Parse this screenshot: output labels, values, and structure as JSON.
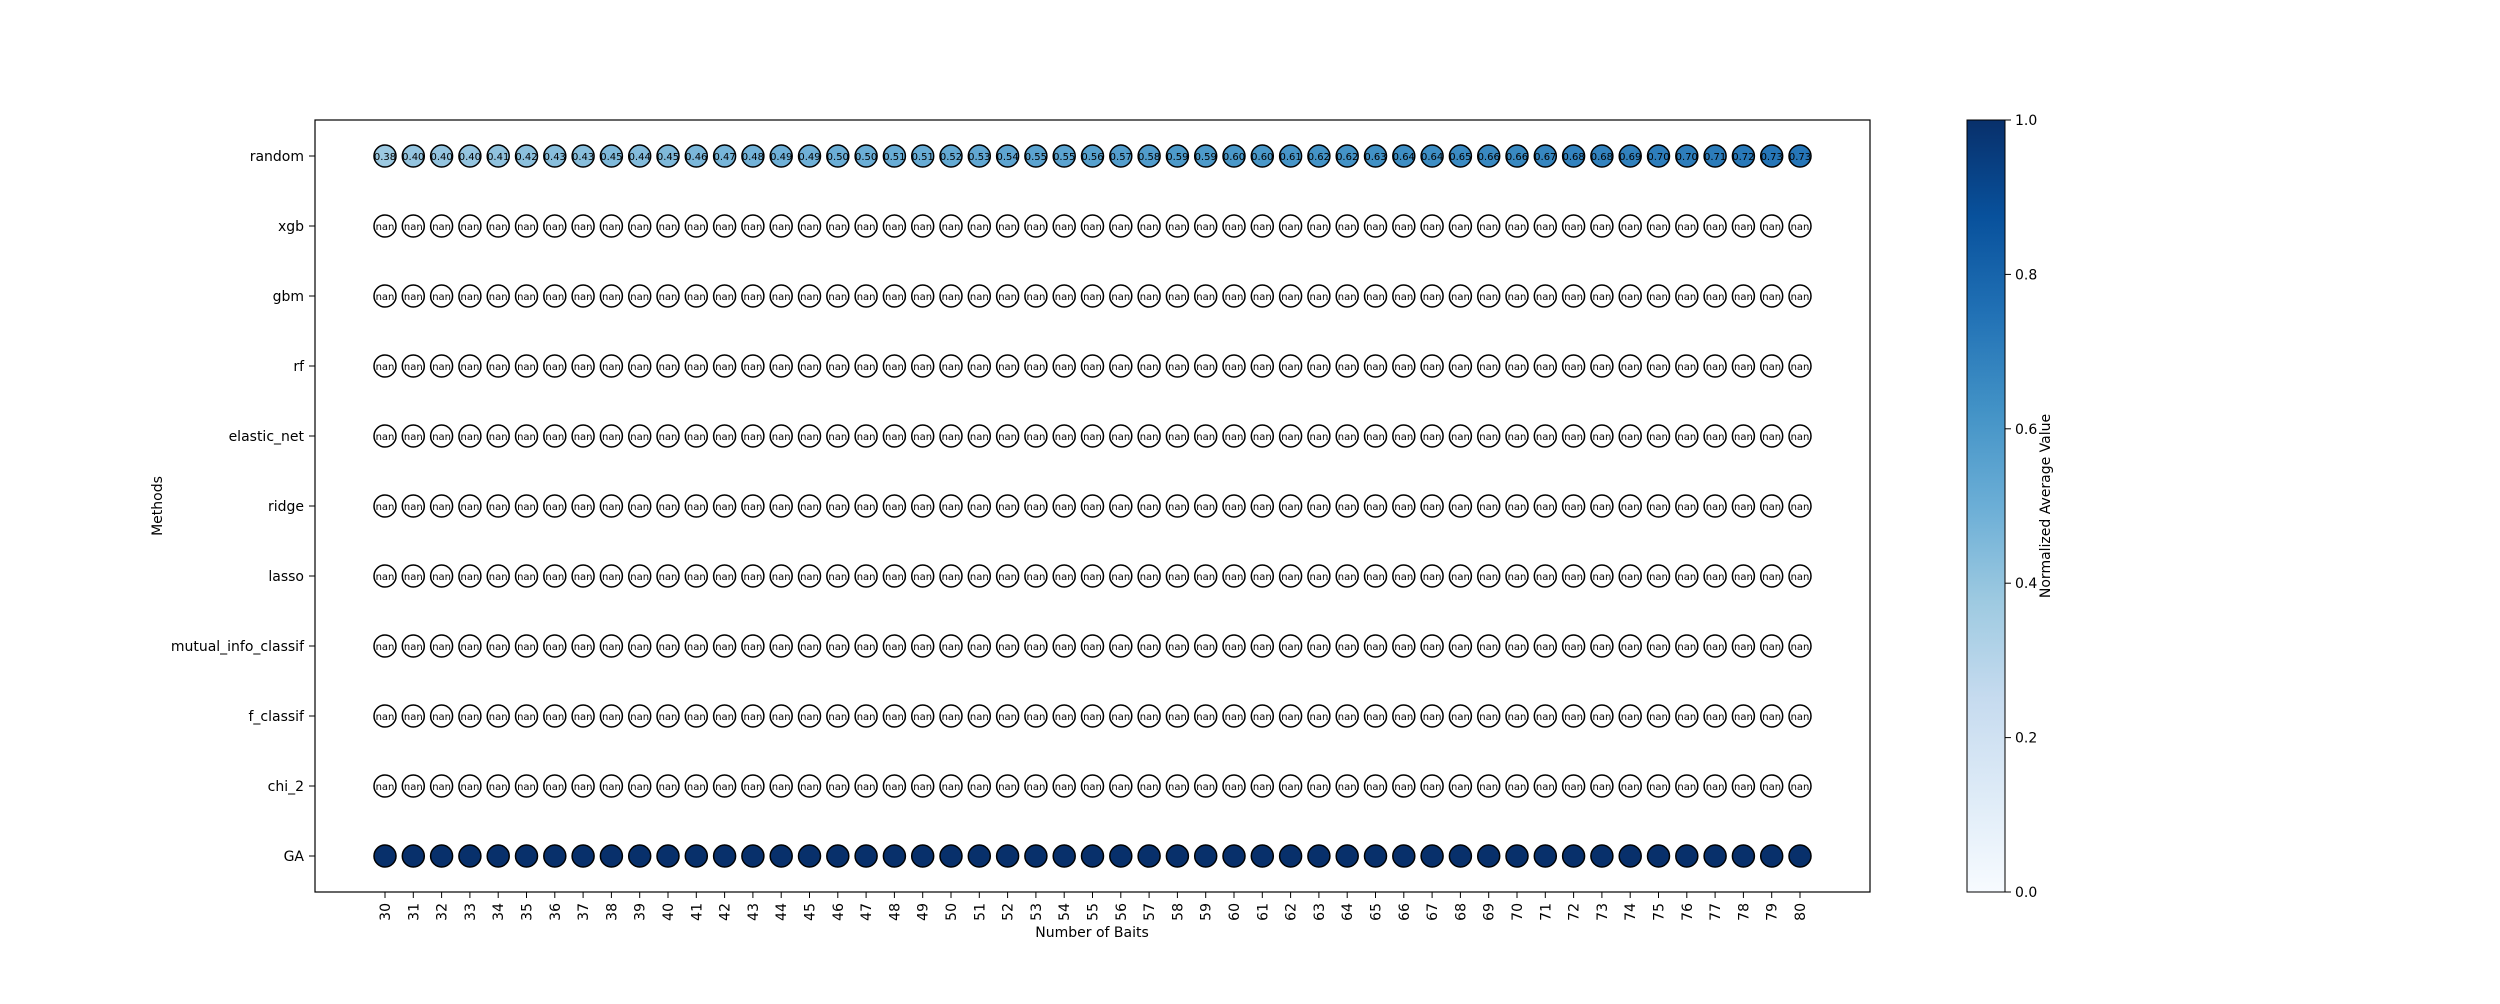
{
  "chart_data": {
    "type": "scatter",
    "xlabel": "Number of Baits",
    "ylabel": "Methods",
    "x": [
      30,
      31,
      32,
      33,
      34,
      35,
      36,
      37,
      38,
      39,
      40,
      41,
      42,
      43,
      44,
      45,
      46,
      47,
      48,
      49,
      50,
      51,
      52,
      53,
      54,
      55,
      56,
      57,
      58,
      59,
      60,
      61,
      62,
      63,
      64,
      65,
      66,
      67,
      68,
      69,
      70,
      71,
      72,
      73,
      74,
      75,
      76,
      77,
      78,
      79,
      80
    ],
    "methods": [
      "random",
      "xgb",
      "gbm",
      "rf",
      "elastic_net",
      "ridge",
      "lasso",
      "mutual_info_classif",
      "f_classif",
      "chi_2",
      "GA"
    ],
    "nan_label": "nan",
    "series": [
      {
        "name": "random",
        "values": [
          0.38,
          0.4,
          0.4,
          0.4,
          0.41,
          0.42,
          0.43,
          0.43,
          0.45,
          0.44,
          0.45,
          0.46,
          0.47,
          0.48,
          0.49,
          0.49,
          0.5,
          0.5,
          0.51,
          0.51,
          0.52,
          0.53,
          0.54,
          0.55,
          0.55,
          0.56,
          0.57,
          0.58,
          0.59,
          0.59,
          0.6,
          0.6,
          0.61,
          0.62,
          0.62,
          0.63,
          0.64,
          0.64,
          0.65,
          0.66,
          0.66,
          0.67,
          0.68,
          0.68,
          0.69,
          0.7,
          0.7,
          0.71,
          0.72,
          0.73,
          0.73
        ],
        "labels": [
          "0.38",
          "0.40",
          "0.40",
          "0.40",
          "0.41",
          "0.42",
          "0.43",
          "0.43",
          "0.45",
          "0.44",
          "0.45",
          "0.46",
          "0.47",
          "0.48",
          "0.49",
          "0.49",
          "0.50",
          "0.50",
          "0.51",
          "0.51",
          "0.52",
          "0.53",
          "0.54",
          "0.55",
          "0.55",
          "0.56",
          "0.57",
          "0.58",
          "0.59",
          "0.59",
          "0.60",
          "0.60",
          "0.61",
          "0.62",
          "0.62",
          "0.63",
          "0.64",
          "0.64",
          "0.65",
          "0.66",
          "0.66",
          "0.67",
          "0.68",
          "0.68",
          "0.69",
          "0.70",
          "0.70",
          "0.71",
          "0.72",
          "0.73",
          "0.73"
        ]
      },
      {
        "name": "xgb",
        "values": null
      },
      {
        "name": "gbm",
        "values": null
      },
      {
        "name": "rf",
        "values": null
      },
      {
        "name": "elastic_net",
        "values": null
      },
      {
        "name": "ridge",
        "values": null
      },
      {
        "name": "lasso",
        "values": null
      },
      {
        "name": "mutual_info_classif",
        "values": null
      },
      {
        "name": "f_classif",
        "values": null
      },
      {
        "name": "chi_2",
        "values": null
      },
      {
        "name": "GA",
        "values": 1.0
      }
    ],
    "colorbar": {
      "label": "Normalized Average Value",
      "range": [
        0.0,
        1.0
      ],
      "ticks": [
        "0.0",
        "0.2",
        "0.4",
        "0.6",
        "0.8",
        "1.0"
      ],
      "colormap": "Blues"
    },
    "grid": false
  }
}
